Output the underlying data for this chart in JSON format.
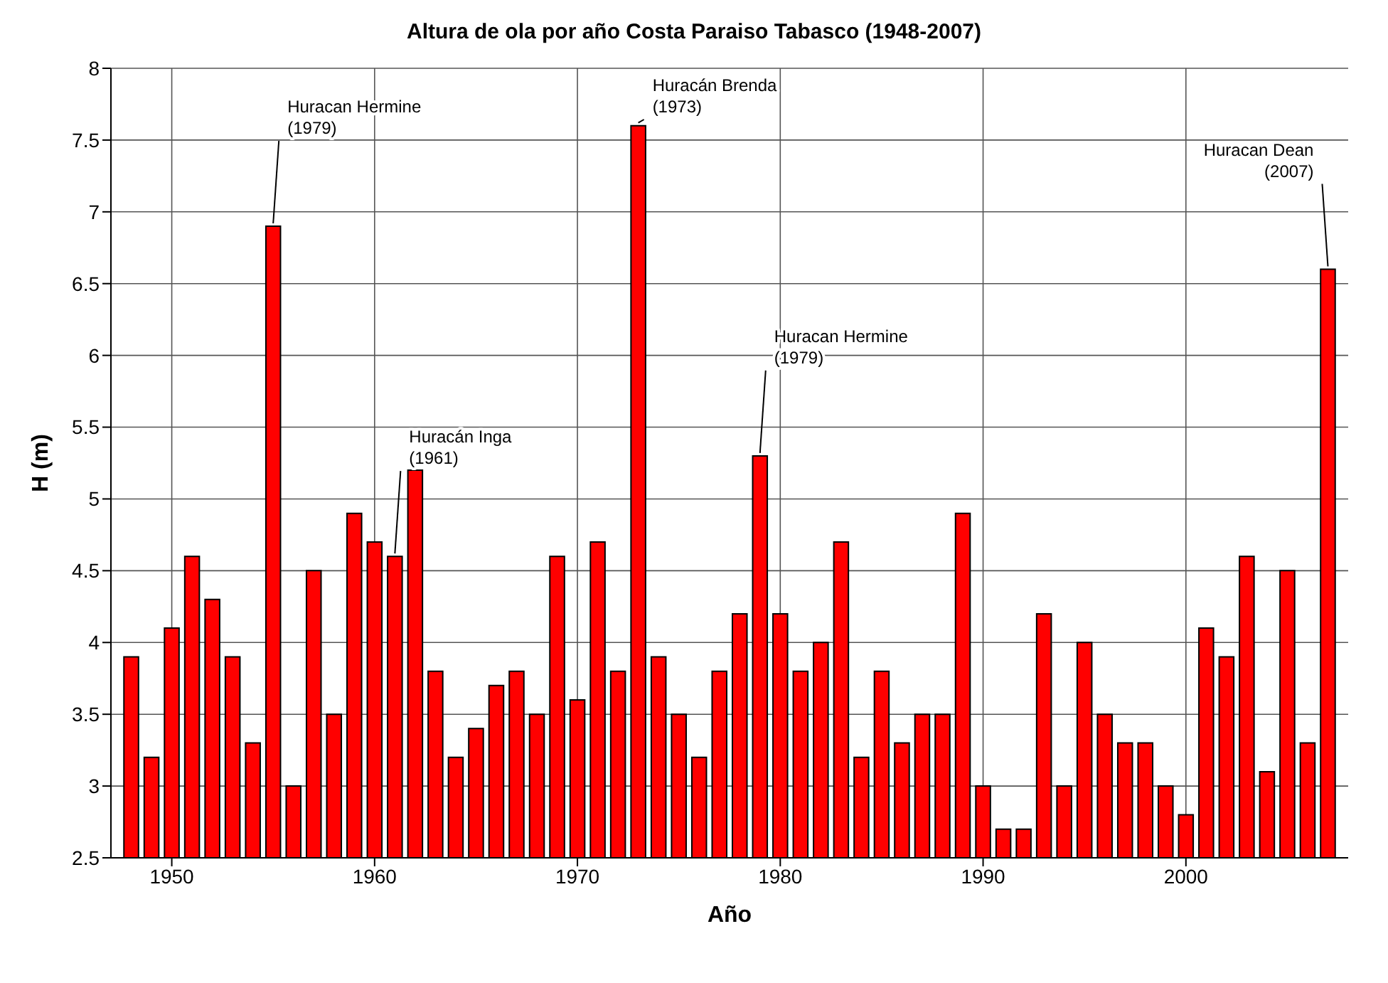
{
  "chart_data": {
    "type": "bar",
    "title": "Altura de ola por año Costa Paraiso Tabasco (1948-2007)",
    "xlabel": "Año",
    "ylabel": "H (m)",
    "x": [
      1948,
      1949,
      1950,
      1951,
      1952,
      1953,
      1954,
      1955,
      1956,
      1957,
      1958,
      1959,
      1960,
      1961,
      1962,
      1963,
      1964,
      1965,
      1966,
      1967,
      1968,
      1969,
      1970,
      1971,
      1972,
      1973,
      1974,
      1975,
      1976,
      1977,
      1978,
      1979,
      1980,
      1981,
      1982,
      1983,
      1984,
      1985,
      1986,
      1987,
      1988,
      1989,
      1990,
      1991,
      1992,
      1993,
      1994,
      1995,
      1996,
      1997,
      1998,
      1999,
      2000,
      2001,
      2002,
      2003,
      2004,
      2005,
      2006,
      2007
    ],
    "values": [
      3.9,
      3.2,
      4.1,
      4.6,
      4.3,
      3.9,
      3.3,
      6.9,
      3.0,
      4.5,
      3.5,
      4.9,
      4.7,
      4.6,
      5.2,
      3.8,
      3.2,
      3.4,
      3.7,
      3.8,
      3.5,
      4.6,
      3.6,
      4.7,
      3.8,
      7.6,
      3.9,
      3.5,
      3.2,
      3.8,
      4.2,
      5.3,
      4.2,
      3.8,
      4.0,
      4.7,
      3.2,
      3.8,
      3.3,
      3.5,
      3.5,
      4.9,
      3.0,
      2.7,
      2.7,
      4.2,
      3.0,
      4.0,
      3.5,
      3.3,
      3.3,
      3.0,
      2.8,
      4.1,
      3.9,
      4.6,
      3.1,
      4.5,
      3.3,
      6.6
    ],
    "color": "#ff0000",
    "xlim": [
      1947,
      2008
    ],
    "xticks": [
      1950,
      1960,
      1970,
      1980,
      1990,
      2000
    ],
    "ylim": [
      2.5,
      8
    ],
    "yticks": [
      2.5,
      3,
      3.5,
      4,
      4.5,
      5,
      5.5,
      6,
      6.5,
      7,
      7.5,
      8
    ],
    "grid": true,
    "annotations": [
      {
        "text": "Huracan Hermine (1979)",
        "x": 1955,
        "y": 6.9
      },
      {
        "text": "Huracán Inga (1961)",
        "x": 1961,
        "y": 4.6
      },
      {
        "text": "Huracán Brenda (1973)",
        "x": 1973,
        "y": 7.6
      },
      {
        "text": "Huracan Hermine (1979)",
        "x": 1979,
        "y": 5.3
      },
      {
        "text": "Huracan Dean (2007)",
        "x": 2007,
        "y": 6.6
      }
    ]
  }
}
